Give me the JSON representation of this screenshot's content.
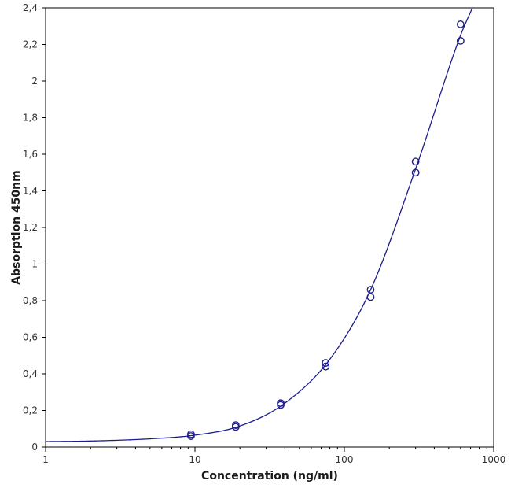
{
  "chart_data": {
    "type": "scatter",
    "title": "",
    "xlabel": "Concentration (ng/ml)",
    "ylabel": "Absorption 450nm",
    "x_scale": "log",
    "xlim": [
      1,
      1000
    ],
    "ylim": [
      0,
      2.4
    ],
    "x_ticks": [
      {
        "value": 1,
        "label": "1"
      },
      {
        "value": 10,
        "label": "10"
      },
      {
        "value": 100,
        "label": "100"
      },
      {
        "value": 1000,
        "label": "1000"
      }
    ],
    "y_ticks": [
      {
        "value": 0,
        "label": "0"
      },
      {
        "value": 0.2,
        "label": "0,2"
      },
      {
        "value": 0.4,
        "label": "0,4"
      },
      {
        "value": 0.6,
        "label": "0,6"
      },
      {
        "value": 0.8,
        "label": "0,8"
      },
      {
        "value": 1.0,
        "label": "1"
      },
      {
        "value": 1.2,
        "label": "1,2"
      },
      {
        "value": 1.4,
        "label": "1,4"
      },
      {
        "value": 1.6,
        "label": "1,6"
      },
      {
        "value": 1.8,
        "label": "1,8"
      },
      {
        "value": 2.0,
        "label": "2"
      },
      {
        "value": 2.2,
        "label": "2,2"
      },
      {
        "value": 2.4,
        "label": "2,4"
      }
    ],
    "grid": false,
    "series": [
      {
        "marker": "open-circle",
        "color": "#1c1c8c",
        "points": [
          {
            "x": 9.4,
            "y": 0.07
          },
          {
            "x": 9.4,
            "y": 0.06
          },
          {
            "x": 18.75,
            "y": 0.12
          },
          {
            "x": 18.75,
            "y": 0.11
          },
          {
            "x": 37.5,
            "y": 0.24
          },
          {
            "x": 37.5,
            "y": 0.23
          },
          {
            "x": 75,
            "y": 0.46
          },
          {
            "x": 75,
            "y": 0.44
          },
          {
            "x": 150,
            "y": 0.86
          },
          {
            "x": 150,
            "y": 0.82
          },
          {
            "x": 300,
            "y": 1.56
          },
          {
            "x": 300,
            "y": 1.5
          },
          {
            "x": 600,
            "y": 2.31
          },
          {
            "x": 600,
            "y": 2.22
          }
        ]
      }
    ],
    "fit_curve": {
      "color": "#1c1c8c",
      "points": [
        {
          "x": 1,
          "y": 0.03
        },
        {
          "x": 2,
          "y": 0.033
        },
        {
          "x": 5,
          "y": 0.045
        },
        {
          "x": 10,
          "y": 0.065
        },
        {
          "x": 20,
          "y": 0.115
        },
        {
          "x": 40,
          "y": 0.24
        },
        {
          "x": 80,
          "y": 0.48
        },
        {
          "x": 150,
          "y": 0.86
        },
        {
          "x": 300,
          "y": 1.52
        },
        {
          "x": 600,
          "y": 2.25
        },
        {
          "x": 720,
          "y": 2.4
        }
      ]
    }
  }
}
